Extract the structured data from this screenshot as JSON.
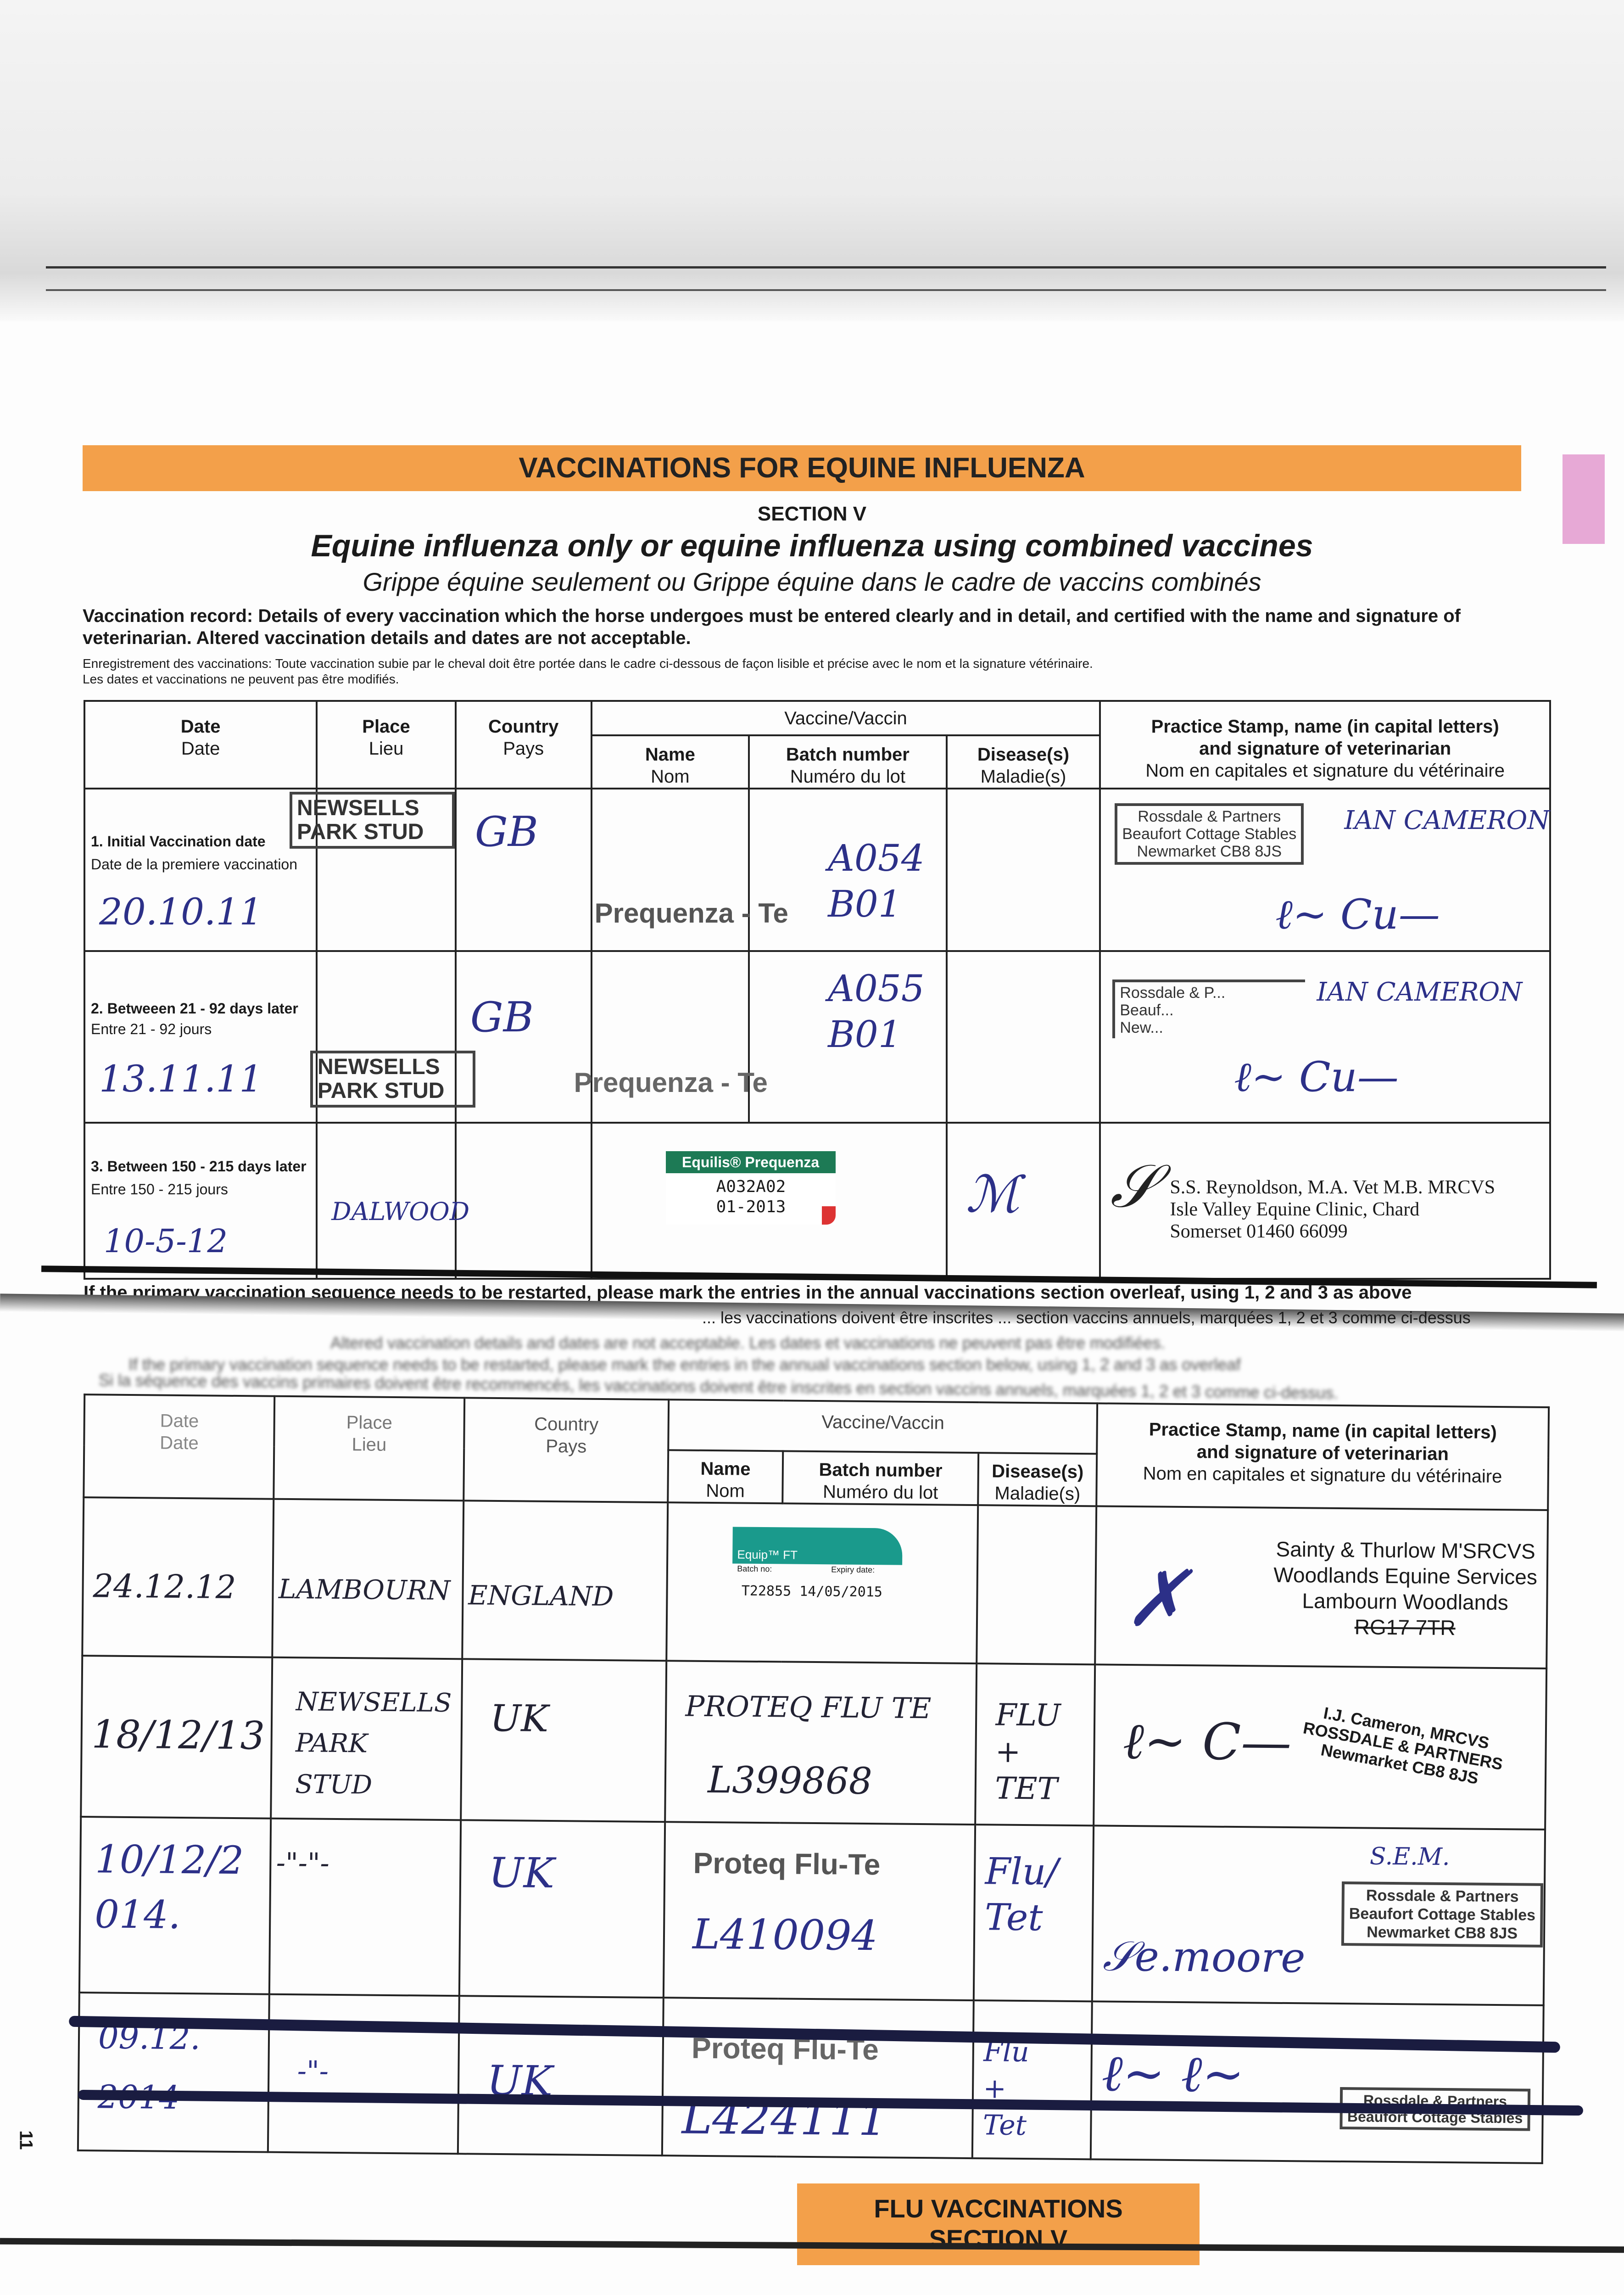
{
  "header": {
    "banner": "VACCINATIONS FOR EQUINE INFLUENZA",
    "section": "SECTION V",
    "title": "Equine influenza only or equine influenza using combined vaccines",
    "subtitle": "Grippe équine seulement ou Grippe équine dans le cadre de vaccins combinés"
  },
  "intro": {
    "en": "Vaccination record: Details of every vaccination which the horse undergoes must be entered clearly and in detail, and certified with the name and signature of veterinarian. Altered vaccination details and dates are not acceptable.",
    "fr1": "Enregistrement des vaccinations: Toute vaccination subie par le cheval doit être portée  dans le cadre ci-dessous de façon lisible et précise avec le nom et la signature vétérinaire.",
    "fr2": "Les dates et vaccinations ne peuvent pas être modifiés."
  },
  "columns": {
    "date": [
      "Date",
      "Date"
    ],
    "place": [
      "Place",
      "Lieu"
    ],
    "country": [
      "Country",
      "Pays"
    ],
    "vaccine": "Vaccine/Vaccin",
    "name": [
      "Name",
      "Nom"
    ],
    "batch": [
      "Batch number",
      "Numéro du lot"
    ],
    "disease": [
      "Disease(s)",
      "Maladie(s)"
    ],
    "stamp": [
      "Practice Stamp, name (in capital letters)",
      "and signature of veterinarian",
      "Nom en capitales et signature du vétérinaire"
    ]
  },
  "primary": [
    {
      "label": "1. Initial Vaccination date",
      "label_fr": "Date de la premiere vaccination",
      "date": "20.10.11",
      "place_stamp": "NEWSELLS PARK STUD",
      "country": "GB",
      "name": "Prequenza - Te",
      "batch": "A054 B01",
      "practice_stamp": [
        "Rossdale & Partners",
        "Beaufort Cottage Stables",
        "Newmarket CB8 8JS"
      ],
      "vet_name": "IAN CAMERON"
    },
    {
      "label": "2. Betweeen 21 - 92 days later",
      "label_fr": "Entre 21 - 92 jours",
      "date": "13.11.11",
      "place_stamp": "NEWSELLS PARK STUD",
      "country": "GB",
      "name": "Prequenza - Te",
      "batch": "A055 B01",
      "practice_stamp": [
        "Rossdale & P...",
        "Beauf...",
        "New..."
      ],
      "vet_name": "IAN CAMERON"
    },
    {
      "label": "3. Between 150 - 215  days later",
      "label_fr": "Entre 150 - 215 jours",
      "date": "10-5-12",
      "place": "DALWOOD",
      "sticker": {
        "brand": "Equilis® Prequenza",
        "lot": "A032A02",
        "exp": "01-2013"
      },
      "practice_stamp": [
        "S.S. Reynoldson, M.A. Vet M.B. MRCVS",
        "Isle Valley Equine Clinic, Chard",
        "Somerset 01460 66099"
      ]
    }
  ],
  "restart": {
    "en": "If the primary vaccination sequence needs to be restarted, please mark the entries in the annual vaccinations section overleaf, using 1, 2 and 3 as above",
    "fr": "... les vaccinations doivent être inscrites ... section vaccins annuels, marquées 1, 2 et 3 comme ci-dessus",
    "faded1": "Altered vaccination details and dates are not acceptable. Les dates et vaccinations ne peuvent pas être modifiées.",
    "faded2": "If the primary vaccination sequence needs to be restarted, please mark the entries in the annual vaccinations section below, using 1, 2 and 3 as overleaf",
    "faded3": "Si la séquence des vaccins primaires doivent être recommencés, les vaccinations doivent être inscrites en section vaccins annuels, marquées 1, 2 et 3 comme ci-dessus."
  },
  "annual": [
    {
      "date": "24.12.12",
      "place": "LAMBOURN",
      "country": "ENGLAND",
      "sticker": {
        "brand": "Equip™ FT",
        "batch_label": "Batch no:",
        "expiry_label": "Expiry date:",
        "value": "T22855 14/05/2015"
      },
      "practice_stamp": [
        "Sainty & Thurlow M'SRCVS",
        "Woodlands Equine Services",
        "Lambourn Woodlands",
        "RG17 7TR"
      ]
    },
    {
      "date": "18/12/13",
      "place": "NEWSELLS PARK STUD",
      "country": "UK",
      "name": "PROTEQ FLU TE",
      "batch": "L399868",
      "disease": "FLU + TET",
      "practice_stamp": [
        "I.J. Cameron, MRCVS",
        "ROSSDALE & PARTNERS",
        "Newmarket CB8 8JS"
      ]
    },
    {
      "date": "10/12/2014.",
      "place": "-\"-\"-",
      "country": "UK",
      "name": "Proteq Flu-Te",
      "batch": "L410094",
      "disease": "Flu/Tet",
      "initials": "S.E.M.",
      "practice_stamp": [
        "Rossdale & Partners",
        "Beaufort Cottage Stables",
        "Newmarket CB8 8JS"
      ]
    },
    {
      "date": "09.12. 2014",
      "place": "-\"-",
      "country": "UK",
      "name": "Proteq Flu-Te",
      "batch": "L424111",
      "disease": "Flu + Tet",
      "practice_stamp": [
        "Rossdale & Partners",
        "Beaufort Cottage Stables"
      ],
      "crossed_out": true
    }
  ],
  "footer": {
    "line1": "FLU VACCINATIONS",
    "line2": "SECTION V",
    "page": "11"
  },
  "colors": {
    "banner": "#f3a04a",
    "ink": "#2c3088",
    "tab": "#e7a9d6"
  }
}
